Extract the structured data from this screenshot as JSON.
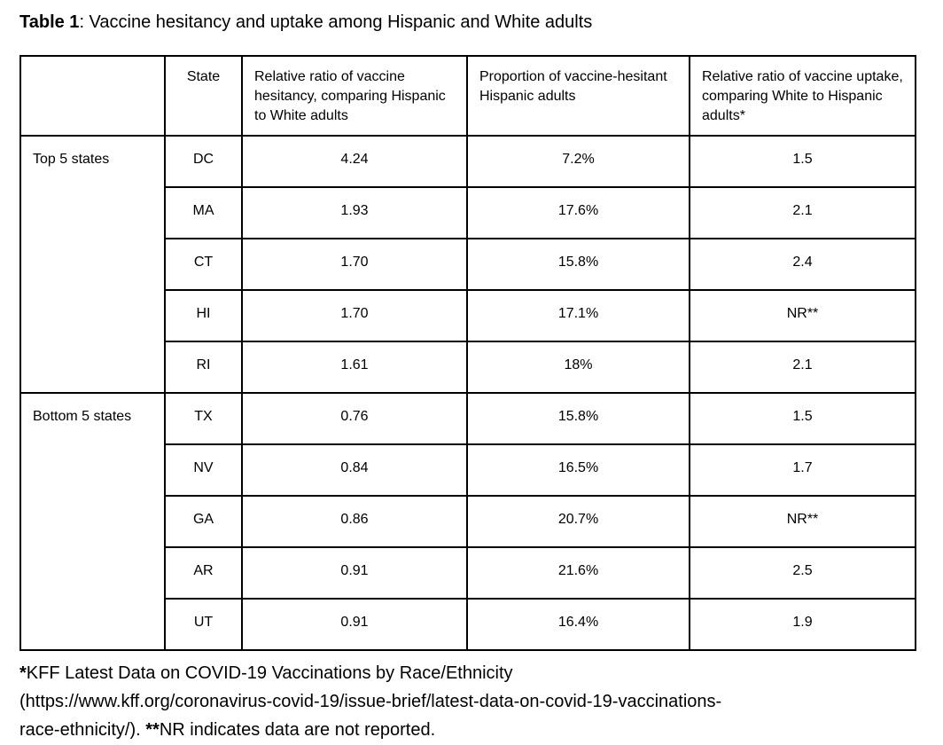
{
  "title": {
    "bold": "Table 1",
    "rest": ": Vaccine hesitancy and uptake among Hispanic and White adults"
  },
  "table": {
    "headers": [
      "",
      "State",
      "Relative ratio of vaccine hesitancy, comparing Hispanic to White adults",
      "Proportion of vaccine-hesitant Hispanic adults",
      "Relative ratio of vaccine uptake, comparing White to Hispanic adults*"
    ],
    "groups": [
      {
        "label": "Top 5 states",
        "rows": [
          {
            "state": "DC",
            "hesitancy_ratio": "4.24",
            "hesitant_proportion": "7.2%",
            "uptake_ratio": "1.5"
          },
          {
            "state": "MA",
            "hesitancy_ratio": "1.93",
            "hesitant_proportion": "17.6%",
            "uptake_ratio": "2.1"
          },
          {
            "state": "CT",
            "hesitancy_ratio": "1.70",
            "hesitant_proportion": "15.8%",
            "uptake_ratio": "2.4"
          },
          {
            "state": "HI",
            "hesitancy_ratio": "1.70",
            "hesitant_proportion": "17.1%",
            "uptake_ratio": "NR**"
          },
          {
            "state": "RI",
            "hesitancy_ratio": "1.61",
            "hesitant_proportion": "18%",
            "uptake_ratio": "2.1"
          }
        ]
      },
      {
        "label": "Bottom 5 states",
        "rows": [
          {
            "state": "TX",
            "hesitancy_ratio": "0.76",
            "hesitant_proportion": "15.8%",
            "uptake_ratio": "1.5"
          },
          {
            "state": "NV",
            "hesitancy_ratio": "0.84",
            "hesitant_proportion": "16.5%",
            "uptake_ratio": "1.7"
          },
          {
            "state": "GA",
            "hesitancy_ratio": "0.86",
            "hesitant_proportion": "20.7%",
            "uptake_ratio": "NR**"
          },
          {
            "state": "AR",
            "hesitancy_ratio": "0.91",
            "hesitant_proportion": "21.6%",
            "uptake_ratio": "2.5"
          },
          {
            "state": "UT",
            "hesitancy_ratio": "0.91",
            "hesitant_proportion": "16.4%",
            "uptake_ratio": "1.9"
          }
        ]
      }
    ]
  },
  "footnote": {
    "line1_marker": "*",
    "line1_text": "KFF Latest Data on COVID-19 Vaccinations by Race/Ethnicity",
    "line2_text": "(https://www.kff.org/coronavirus-covid-19/issue-brief/latest-data-on-covid-19-vaccinations-",
    "line3_pre": "race-ethnicity/). ",
    "line3_marker": "**",
    "line3_text": "NR indicates data are not reported."
  }
}
